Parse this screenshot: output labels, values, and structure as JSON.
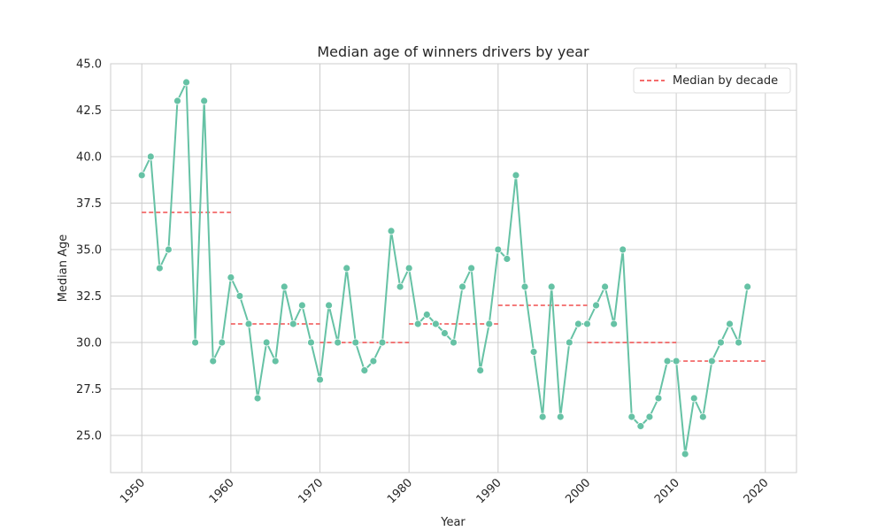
{
  "chart_data": {
    "type": "line",
    "title": "Median age of  winners drivers by year",
    "xlabel": "Year",
    "ylabel": "Median Age",
    "xlim": [
      1946.5,
      2023.5
    ],
    "ylim": [
      23.0,
      45.0
    ],
    "xticks": [
      1950,
      1960,
      1970,
      1980,
      1990,
      2000,
      2010,
      2020
    ],
    "yticks": [
      25.0,
      27.5,
      30.0,
      32.5,
      35.0,
      37.5,
      40.0,
      42.5,
      45.0
    ],
    "grid": true,
    "legend_position": "top-right",
    "series": [
      {
        "role": "line",
        "color": "#66c2a5",
        "x": [
          1950,
          1951,
          1952,
          1953,
          1954,
          1955,
          1956,
          1957,
          1958,
          1959,
          1960,
          1961,
          1962,
          1963,
          1964,
          1965,
          1966,
          1967,
          1968,
          1969,
          1970,
          1971,
          1972,
          1973,
          1974,
          1975,
          1976,
          1977,
          1978,
          1979,
          1980,
          1981,
          1982,
          1983,
          1984,
          1985,
          1986,
          1987,
          1988,
          1989,
          1990,
          1991,
          1992,
          1993,
          1994,
          1995,
          1996,
          1997,
          1998,
          1999,
          2000,
          2001,
          2002,
          2003,
          2004,
          2005,
          2006,
          2007,
          2008,
          2009,
          2010,
          2011,
          2012,
          2013,
          2014,
          2015,
          2016,
          2017,
          2018
        ],
        "y": [
          39,
          40,
          34,
          35,
          43,
          44,
          30,
          43,
          29,
          30,
          33.5,
          32.5,
          31,
          27,
          30,
          29,
          33,
          31,
          32,
          30,
          28,
          32,
          30,
          34,
          30,
          28.5,
          29,
          30,
          36,
          33,
          34,
          31,
          31.5,
          31,
          30.5,
          30,
          33,
          34,
          28.5,
          31,
          35,
          34.5,
          39,
          33,
          29.5,
          26,
          33,
          26,
          30,
          31,
          31,
          32,
          33,
          31,
          35,
          26,
          25.5,
          26,
          27,
          29,
          29,
          24,
          27,
          26,
          29,
          30,
          31,
          30,
          33
        ]
      },
      {
        "role": "decade-median",
        "name": "Median by decade",
        "color": "#f03c3c",
        "segments": [
          {
            "x": [
              1950,
              1960
            ],
            "y": 37
          },
          {
            "x": [
              1960,
              1970
            ],
            "y": 31
          },
          {
            "x": [
              1970,
              1980
            ],
            "y": 30
          },
          {
            "x": [
              1980,
              1990
            ],
            "y": 31
          },
          {
            "x": [
              1990,
              2000
            ],
            "y": 32
          },
          {
            "x": [
              2000,
              2010
            ],
            "y": 30
          },
          {
            "x": [
              2010,
              2020
            ],
            "y": 29
          }
        ]
      }
    ]
  }
}
